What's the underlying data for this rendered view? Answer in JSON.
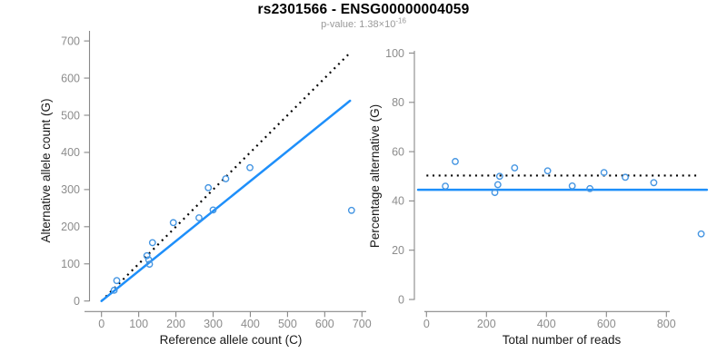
{
  "header": {
    "title": "rs2301566 - ENSG00000004059",
    "subtitle_prefix": "p-value: 1.38",
    "subtitle_times": "×",
    "subtitle_mantissa_base": "10",
    "subtitle_exponent": "-16"
  },
  "colors": {
    "point": "#4495E2",
    "fit_line": "#1E8FFA",
    "reference_line": "#000000",
    "axis": "#888888",
    "tick_label": "#8C8C8C",
    "axis_label": "#1A1A1A",
    "title": "#000000",
    "subtitle": "#999999"
  },
  "chart_data": [
    {
      "type": "scatter",
      "name": "allele-counts",
      "xlabel": "Reference allele count (C)",
      "ylabel": "Alternative allele count (G)",
      "xlim": [
        0,
        700
      ],
      "ylim": [
        0,
        700
      ],
      "x_ticks": [
        0,
        100,
        200,
        300,
        400,
        500,
        600,
        700
      ],
      "y_ticks": [
        0,
        100,
        200,
        300,
        400,
        500,
        600,
        700
      ],
      "grid": false,
      "legend_position": "none",
      "points": [
        [
          34,
          29
        ],
        [
          41,
          55
        ],
        [
          129,
          99
        ],
        [
          127,
          111
        ],
        [
          122,
          122
        ],
        [
          137,
          157
        ],
        [
          193,
          211
        ],
        [
          262,
          224
        ],
        [
          300,
          245
        ],
        [
          287,
          305
        ],
        [
          334,
          329
        ],
        [
          399,
          359
        ],
        [
          672,
          244
        ]
      ],
      "fit_line": {
        "style": "solid",
        "x1": 0,
        "y1": 0,
        "x2": 668,
        "y2": 539
      },
      "reference_line": {
        "style": "dotted",
        "x1": 0,
        "y1": 0,
        "x2": 664,
        "y2": 664
      }
    },
    {
      "type": "scatter",
      "name": "percentage-vs-reads",
      "xlabel": "Total number of reads",
      "ylabel": "Percentage alternative (G)",
      "xlim": [
        0,
        940
      ],
      "ylim": [
        0,
        100
      ],
      "x_ticks": [
        0,
        200,
        400,
        600,
        800
      ],
      "y_ticks": [
        0,
        20,
        40,
        60,
        80,
        100
      ],
      "grid": false,
      "legend_position": "none",
      "points": [
        [
          63,
          46
        ],
        [
          96,
          56
        ],
        [
          228,
          43.4
        ],
        [
          238,
          46.6
        ],
        [
          244,
          50
        ],
        [
          294,
          53.4
        ],
        [
          404,
          52.2
        ],
        [
          486,
          46.1
        ],
        [
          545,
          45.0
        ],
        [
          592,
          51.5
        ],
        [
          663,
          49.6
        ],
        [
          758,
          47.4
        ],
        [
          916,
          26.6
        ]
      ],
      "fit_line": {
        "style": "solid",
        "x1": -28,
        "y1": 44.5,
        "x2": 935,
        "y2": 44.5
      },
      "reference_line": {
        "style": "dotted",
        "x1": 0,
        "y1": 50.3,
        "x2": 905,
        "y2": 50.3
      }
    }
  ]
}
